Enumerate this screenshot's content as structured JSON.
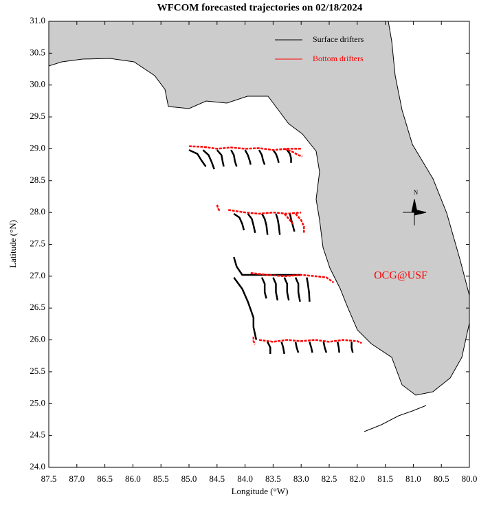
{
  "map": {
    "title": "WFCOM forecasted trajectories on 02/18/2024",
    "xlabel": "Longitude (°W)",
    "ylabel": "Latitude (°N)",
    "annotation": "OCG@USF",
    "north_label": "N",
    "xlim": [
      87.5,
      80.0
    ],
    "ylim": [
      24.0,
      31.0
    ],
    "xticks": [
      87.5,
      {
        "value": 87,
        "label": "87.0"
      },
      86.5,
      {
        "value": 86,
        "label": "86.0"
      },
      85.5,
      {
        "value": 85,
        "label": "85.0"
      },
      84.5,
      {
        "value": 84,
        "label": "84.0"
      },
      83.5,
      {
        "value": 83,
        "label": "83.0"
      },
      82.5,
      {
        "value": 82,
        "label": "82.0"
      },
      81.5,
      {
        "value": 81,
        "label": "81.0"
      },
      80.5,
      {
        "value": 80,
        "label": "80.0"
      }
    ],
    "yticks": [
      {
        "value": 24,
        "label": "24.0"
      },
      24.5,
      {
        "value": 25,
        "label": "25.0"
      },
      25.5,
      {
        "value": 26,
        "label": "26.0"
      },
      26.5,
      {
        "value": 27,
        "label": "27.0"
      },
      27.5,
      {
        "value": 28,
        "label": "28.0"
      },
      28.5,
      {
        "value": 29,
        "label": "29.0"
      },
      29.5,
      {
        "value": 30,
        "label": "30.0"
      },
      30.5,
      {
        "value": 31,
        "label": "31.0"
      }
    ],
    "series": [
      {
        "name": "Surface drifters",
        "color": "#000000",
        "tracks": [
          {
            "x": [
              85.0,
              84.85,
              84.78,
              84.7
            ],
            "y": [
              28.98,
              28.92,
              28.82,
              28.72
            ]
          },
          {
            "x": [
              84.75,
              84.65,
              84.6,
              84.55
            ],
            "y": [
              28.98,
              28.9,
              28.8,
              28.68
            ]
          },
          {
            "x": [
              84.5,
              84.42,
              84.4,
              84.38
            ],
            "y": [
              28.98,
              28.9,
              28.8,
              28.72
            ]
          },
          {
            "x": [
              84.25,
              84.2,
              84.18,
              84.15
            ],
            "y": [
              28.98,
              28.9,
              28.8,
              28.72
            ]
          },
          {
            "x": [
              84.0,
              83.95,
              83.92,
              83.9
            ],
            "y": [
              28.98,
              28.9,
              28.82,
              28.75
            ]
          },
          {
            "x": [
              83.75,
              83.7,
              83.68,
              83.65
            ],
            "y": [
              28.98,
              28.9,
              28.82,
              28.75
            ]
          },
          {
            "x": [
              83.5,
              83.45,
              83.42,
              83.4
            ],
            "y": [
              28.98,
              28.92,
              28.85,
              28.78
            ]
          },
          {
            "x": [
              83.25,
              83.2,
              83.18,
              83.18
            ],
            "y": [
              28.98,
              28.92,
              28.85,
              28.78
            ]
          },
          {
            "x": [
              84.2,
              84.1,
              84.05,
              84.02
            ],
            "y": [
              27.98,
              27.92,
              27.82,
              27.72
            ]
          },
          {
            "x": [
              83.95,
              83.88,
              83.85,
              83.82
            ],
            "y": [
              27.98,
              27.9,
              27.8,
              27.68
            ]
          },
          {
            "x": [
              83.7,
              83.65,
              83.62,
              83.6
            ],
            "y": [
              27.98,
              27.9,
              27.8,
              27.65
            ]
          },
          {
            "x": [
              83.45,
              83.42,
              83.4,
              83.38
            ],
            "y": [
              27.98,
              27.9,
              27.8,
              27.65
            ]
          },
          {
            "x": [
              83.2,
              83.18,
              83.15,
              83.12
            ],
            "y": [
              27.98,
              27.9,
              27.8,
              27.7
            ]
          },
          {
            "x": [
              84.2,
              84.15,
              84.05,
              83.0
            ],
            "y": [
              27.3,
              27.15,
              27.02,
              27.02
            ]
          },
          {
            "x": [
              84.2,
              84.05,
              83.95,
              83.85,
              83.85,
              83.8
            ],
            "y": [
              26.98,
              26.8,
              26.6,
              26.35,
              26.2,
              26.0
            ]
          },
          {
            "x": [
              83.7,
              83.65,
              83.65,
              83.62
            ],
            "y": [
              26.98,
              26.88,
              26.75,
              26.65
            ]
          },
          {
            "x": [
              83.5,
              83.45,
              83.45,
              83.42
            ],
            "y": [
              26.98,
              26.88,
              26.75,
              26.62
            ]
          },
          {
            "x": [
              83.3,
              83.25,
              83.25,
              83.22
            ],
            "y": [
              26.98,
              26.88,
              26.75,
              26.62
            ]
          },
          {
            "x": [
              83.1,
              83.05,
              83.05,
              83.02
            ],
            "y": [
              26.98,
              26.88,
              26.75,
              26.6
            ]
          },
          {
            "x": [
              82.9,
              82.88,
              82.86,
              82.85
            ],
            "y": [
              26.98,
              26.88,
              26.75,
              26.6
            ]
          },
          {
            "x": [
              83.6,
              83.55,
              83.55
            ],
            "y": [
              25.97,
              25.88,
              25.78
            ]
          },
          {
            "x": [
              83.35,
              83.32,
              83.3
            ],
            "y": [
              25.97,
              25.88,
              25.78
            ]
          },
          {
            "x": [
              83.1,
              83.08,
              83.05
            ],
            "y": [
              25.97,
              25.88,
              25.8
            ]
          },
          {
            "x": [
              82.85,
              82.82,
              82.8
            ],
            "y": [
              25.97,
              25.88,
              25.8
            ]
          },
          {
            "x": [
              82.6,
              82.58,
              82.55
            ],
            "y": [
              25.97,
              25.88,
              25.8
            ]
          },
          {
            "x": [
              82.35,
              82.33,
              82.32
            ],
            "y": [
              25.97,
              25.88,
              25.8
            ]
          },
          {
            "x": [
              82.1,
              82.1,
              82.08
            ],
            "y": [
              25.97,
              25.88,
              25.8
            ]
          }
        ]
      },
      {
        "name": "Bottom drifters",
        "color": "#ff0000",
        "tracks": [
          {
            "x": [
              85.0,
              84.75,
              84.5,
              84.25,
              84.0,
              83.75,
              83.5,
              83.25,
              83.0
            ],
            "y": [
              29.04,
              29.03,
              29.0,
              29.02,
              29.0,
              29.01,
              28.98,
              29.0,
              29.0
            ]
          },
          {
            "x": [
              83.3,
              83.15,
              83.05,
              82.98
            ],
            "y": [
              29.0,
              28.95,
              28.9,
              28.88
            ]
          },
          {
            "x": [
              84.5,
              84.48,
              84.45
            ],
            "y": [
              28.12,
              28.06,
              28.02
            ]
          },
          {
            "x": [
              84.3,
              84.0,
              83.75,
              83.5,
              83.25,
              83.0
            ],
            "y": [
              28.04,
              28.0,
              27.98,
              28.0,
              27.98,
              28.0
            ]
          },
          {
            "x": [
              83.3,
              83.2,
              83.15
            ],
            "y": [
              27.98,
              27.88,
              27.82
            ]
          },
          {
            "x": [
              83.1,
              83.0,
              82.95,
              82.95
            ],
            "y": [
              27.98,
              27.88,
              27.78,
              27.68
            ]
          },
          {
            "x": [
              83.9,
              83.6,
              83.3,
              83.0,
              82.75,
              82.55,
              82.42
            ],
            "y": [
              27.05,
              27.02,
              27.0,
              27.02,
              27.0,
              26.98,
              26.9
            ]
          },
          {
            "x": [
              83.85,
              83.85,
              83.82
            ],
            "y": [
              26.05,
              25.98,
              25.93
            ]
          },
          {
            "x": [
              83.75,
              83.5,
              83.25,
              83.0,
              82.75,
              82.5,
              82.25,
              82.0,
              81.92
            ],
            "y": [
              26.0,
              25.97,
              26.0,
              25.98,
              26.0,
              25.97,
              26.0,
              25.98,
              25.95
            ]
          }
        ]
      }
    ]
  }
}
